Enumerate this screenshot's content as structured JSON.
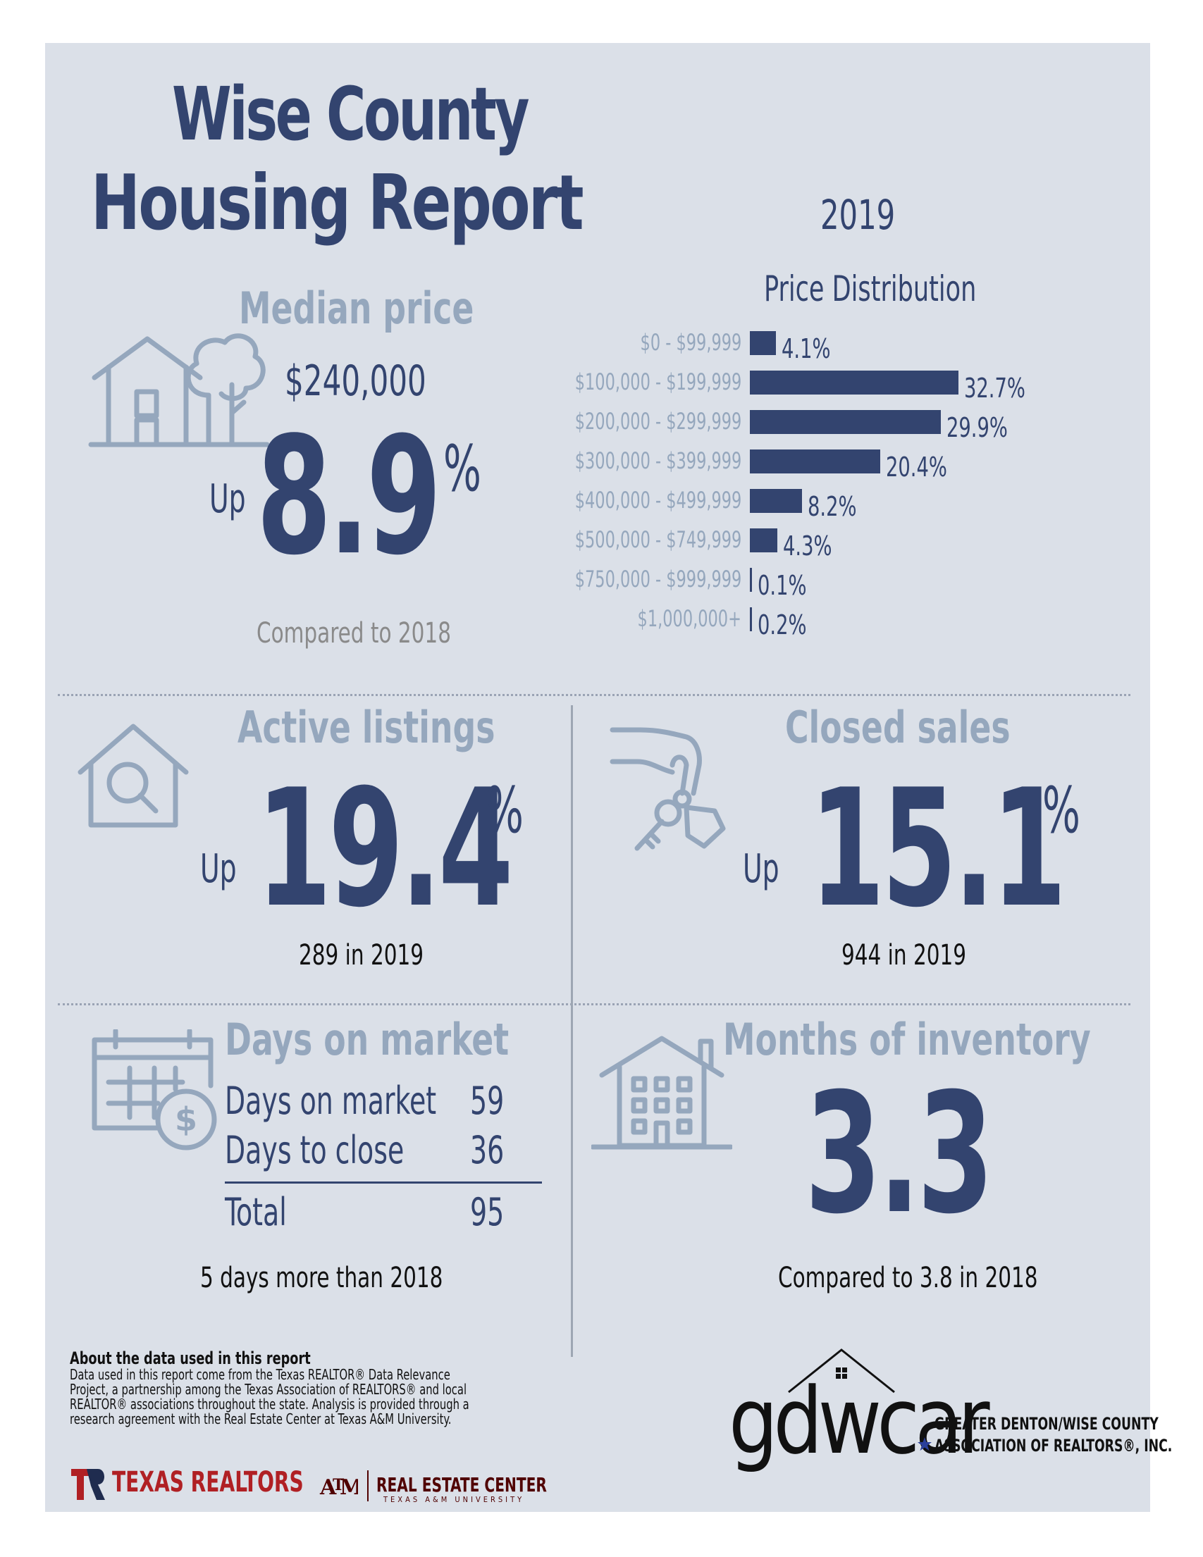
{
  "header": {
    "title_line1": "Wise County",
    "title_line2": "Housing Report",
    "year": "2019"
  },
  "median_price": {
    "heading": "Median price",
    "value": "$240,000",
    "direction": "Up",
    "change": "8.9",
    "unit": "%",
    "comparison": "Compared to 2018"
  },
  "price_distribution": {
    "title": "Price Distribution",
    "chart_data": {
      "type": "bar",
      "title": "Price Distribution",
      "categories": [
        "$0 - $99,999",
        "$100,000 - $199,999",
        "$200,000 - $299,999",
        "$300,000 - $399,999",
        "$400,000 - $499,999",
        "$500,000 - $749,999",
        "$750,000 - $999,999",
        "$1,000,000+"
      ],
      "values": [
        4.1,
        32.7,
        29.9,
        20.4,
        8.2,
        4.3,
        0.1,
        0.2
      ],
      "labels": [
        "4.1%",
        "32.7%",
        "29.9%",
        "20.4%",
        "8.2%",
        "4.3%",
        "0.1%",
        "0.2%"
      ],
      "orientation": "horizontal",
      "unit": "%",
      "color": "#33446f"
    }
  },
  "active_listings": {
    "heading": "Active listings",
    "direction": "Up",
    "change": "19.4",
    "unit": "%",
    "detail": "289 in 2019"
  },
  "closed_sales": {
    "heading": "Closed sales",
    "direction": "Up",
    "change": "15.1",
    "unit": "%",
    "detail": "944 in 2019"
  },
  "days_on_market": {
    "heading": "Days on market",
    "rows": [
      {
        "label": "Days on market",
        "value": "59"
      },
      {
        "label": "Days to close",
        "value": "36"
      }
    ],
    "total": {
      "label": "Total",
      "value": "95"
    },
    "comparison": "5 days more than 2018"
  },
  "months_inventory": {
    "heading": "Months of inventory",
    "value": "3.3",
    "comparison": "Compared to 3.8 in 2018"
  },
  "footer": {
    "about_heading": "About the data used in this report",
    "about_text": "Data used in this report come from the Texas REALTOR® Data Relevance Project, a partnership among the Texas Association of REALTORS® and local REALTOR® associations throughout the state. Analysis is provided through a research agreement with the Real Estate Center at Texas A&M University.",
    "texas_realtors_logo": "TEXAS REALTORS",
    "rec_logo": "REAL ESTATE CENTER",
    "rec_sub": "TEXAS A&M UNIVERSITY",
    "gdwcar_word": "gdwcar",
    "gdwcar_name_line1": "GREATER DENTON/WISE COUNTY",
    "gdwcar_name_line2": "ASSOCIATION OF REALTORS®, INC."
  },
  "colors": {
    "navy": "#33446f",
    "slate": "#95a7bd",
    "panel": "#dbe0e8",
    "texas_red": "#b02024",
    "aggie_maroon": "#500000"
  },
  "icons": [
    "house-tree-icon",
    "house-search-icon",
    "hand-keys-icon",
    "calendar-dollar-icon",
    "apartment-building-icon"
  ]
}
